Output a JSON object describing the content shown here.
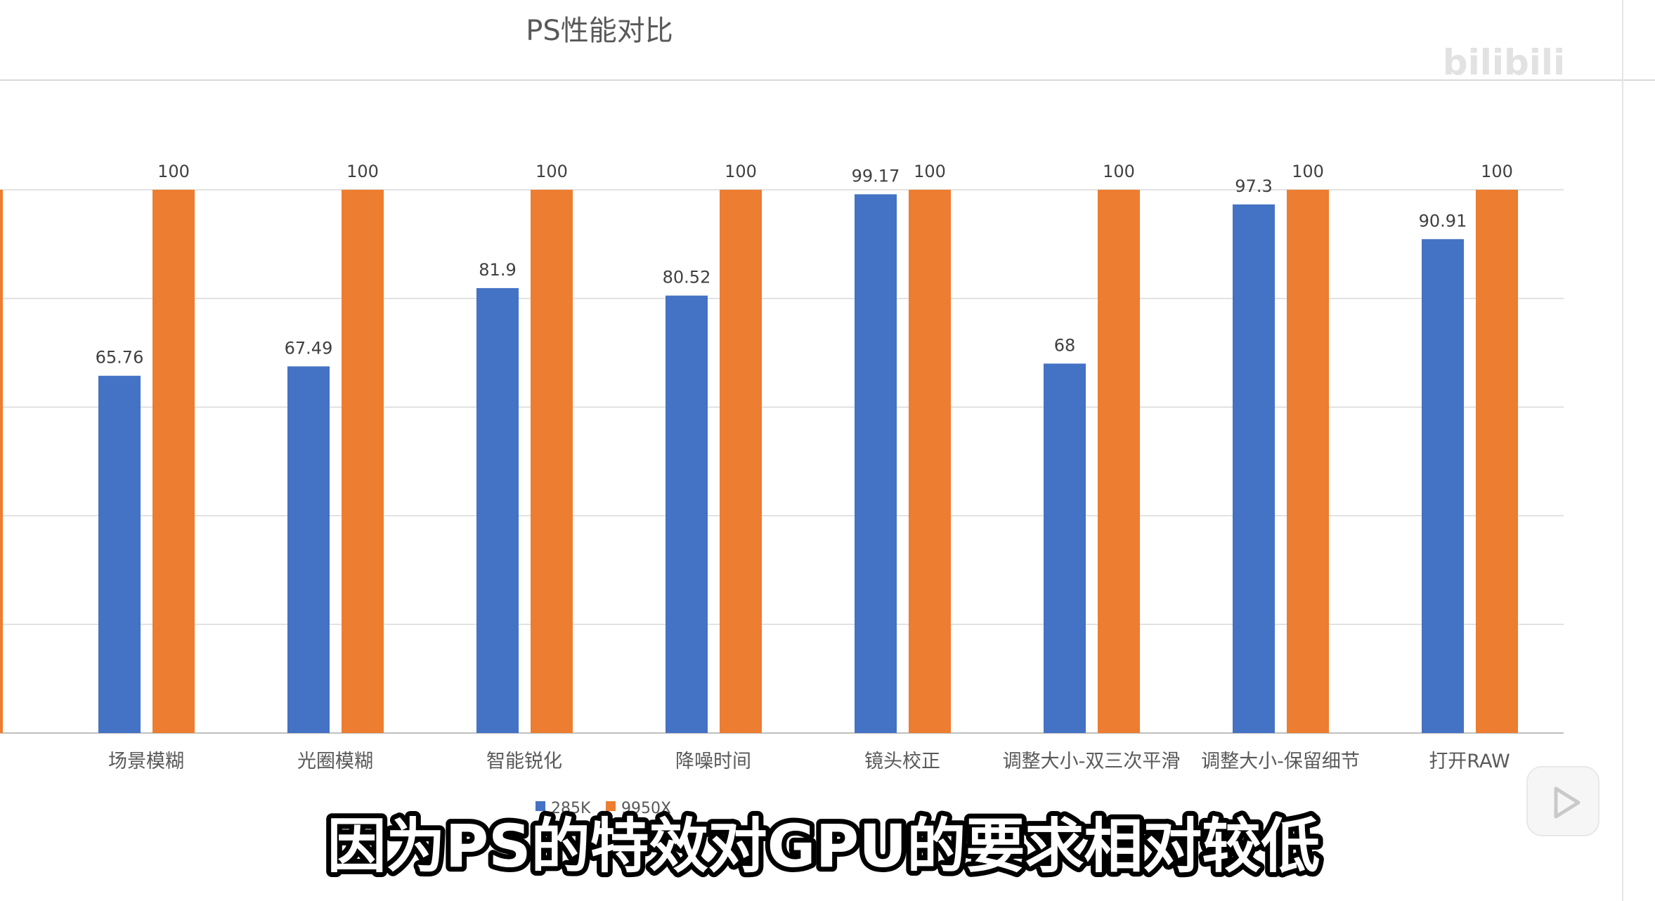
{
  "overlay": {
    "subtitle": "因为PS的特效对GPU的要求相对较低",
    "watermark": "bilibili",
    "play_button_icon": "play-icon"
  },
  "chart_data": {
    "type": "bar",
    "title": "PS性能对比",
    "xlabel": "",
    "ylabel": "",
    "ylim": [
      0,
      100
    ],
    "grid": true,
    "legend_position": "bottom",
    "categories": [
      "场景模糊",
      "光圈模糊",
      "智能锐化",
      "降噪时间",
      "镜头校正",
      "调整大小-双三次平滑",
      "调整大小-保留细节",
      "打开RAW"
    ],
    "series": [
      {
        "name": "285K",
        "color": "#4472C4",
        "values": [
          65.76,
          67.49,
          81.9,
          80.52,
          99.17,
          68,
          97.3,
          90.91
        ]
      },
      {
        "name": "9950X",
        "color": "#ED7D31",
        "values": [
          100,
          100,
          100,
          100,
          100,
          100,
          100,
          100
        ]
      }
    ],
    "data_labels": [
      [
        "65.76",
        "67.49",
        "81.9",
        "80.52",
        "99.17",
        "68",
        "97.3",
        "90.91"
      ],
      [
        "100",
        "100",
        "100",
        "100",
        "100",
        "100",
        "100",
        "100"
      ]
    ]
  }
}
